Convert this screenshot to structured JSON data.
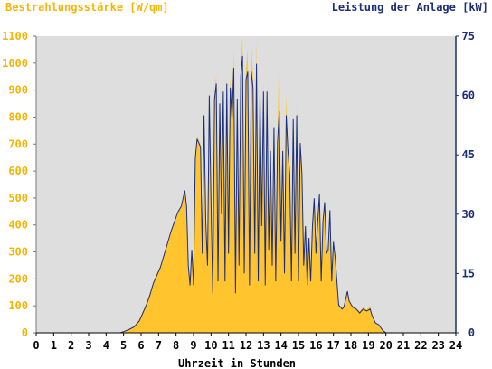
{
  "chart_data": {
    "type": "area",
    "left_axis_label": "Bestrahlungsstärke [W/qm]",
    "right_axis_label": "Leistung der Anlage [kW]",
    "xlabel": "Uhrzeit in Stunden",
    "xlim": [
      0,
      24
    ],
    "ylim_left": [
      0,
      1100
    ],
    "ylim_right": [
      0,
      75
    ],
    "x_ticks": [
      "0",
      "1",
      "2",
      "3",
      "4",
      "5",
      "6",
      "7",
      "8",
      "9",
      "10",
      "11",
      "12",
      "13",
      "14",
      "15",
      "16",
      "17",
      "18",
      "19",
      "20",
      "21",
      "22",
      "23",
      "24"
    ],
    "y_left_ticks": [
      "0",
      "100",
      "200",
      "300",
      "400",
      "500",
      "600",
      "700",
      "800",
      "900",
      "1000",
      "1100"
    ],
    "y_right_ticks": [
      "0",
      "15",
      "30",
      "45",
      "60",
      "75"
    ],
    "colors": {
      "irradiance": "#ffc42e",
      "power": "#1c2f78",
      "background": "#dedede"
    },
    "series": [
      {
        "name": "Bestrahlungsstärke [W/qm]",
        "axis": "left",
        "points": [
          [
            0,
            0
          ],
          [
            4.8,
            0
          ],
          [
            5.0,
            5
          ],
          [
            5.3,
            12
          ],
          [
            5.6,
            25
          ],
          [
            5.9,
            50
          ],
          [
            6.1,
            80
          ],
          [
            6.3,
            110
          ],
          [
            6.5,
            145
          ],
          [
            6.7,
            190
          ],
          [
            6.9,
            220
          ],
          [
            7.1,
            250
          ],
          [
            7.3,
            290
          ],
          [
            7.5,
            330
          ],
          [
            7.7,
            370
          ],
          [
            7.9,
            410
          ],
          [
            8.1,
            440
          ],
          [
            8.3,
            470
          ],
          [
            8.5,
            520
          ],
          [
            8.6,
            470
          ],
          [
            8.7,
            250
          ],
          [
            8.8,
            180
          ],
          [
            8.9,
            310
          ],
          [
            9.0,
            180
          ],
          [
            9.1,
            650
          ],
          [
            9.2,
            730
          ],
          [
            9.4,
            700
          ],
          [
            9.5,
            300
          ],
          [
            9.6,
            820
          ],
          [
            9.7,
            420
          ],
          [
            9.8,
            260
          ],
          [
            9.9,
            900
          ],
          [
            10.0,
            500
          ],
          [
            10.1,
            150
          ],
          [
            10.2,
            880
          ],
          [
            10.3,
            960
          ],
          [
            10.4,
            200
          ],
          [
            10.5,
            880
          ],
          [
            10.6,
            450
          ],
          [
            10.7,
            920
          ],
          [
            10.8,
            200
          ],
          [
            10.9,
            960
          ],
          [
            11.0,
            300
          ],
          [
            11.1,
            950
          ],
          [
            11.2,
            820
          ],
          [
            11.3,
            1050
          ],
          [
            11.4,
            150
          ],
          [
            11.5,
            900
          ],
          [
            11.6,
            260
          ],
          [
            11.7,
            1000
          ],
          [
            11.8,
            1100
          ],
          [
            11.9,
            220
          ],
          [
            12.0,
            980
          ],
          [
            12.1,
            1050
          ],
          [
            12.2,
            180
          ],
          [
            12.3,
            1070
          ],
          [
            12.4,
            950
          ],
          [
            12.5,
            300
          ],
          [
            12.6,
            1090
          ],
          [
            12.7,
            200
          ],
          [
            12.8,
            920
          ],
          [
            12.9,
            400
          ],
          [
            13.0,
            940
          ],
          [
            13.1,
            180
          ],
          [
            13.2,
            950
          ],
          [
            13.3,
            320
          ],
          [
            13.4,
            700
          ],
          [
            13.5,
            250
          ],
          [
            13.6,
            780
          ],
          [
            13.7,
            200
          ],
          [
            13.8,
            720
          ],
          [
            13.9,
            1100
          ],
          [
            14.0,
            350
          ],
          [
            14.1,
            700
          ],
          [
            14.2,
            220
          ],
          [
            14.3,
            880
          ],
          [
            14.4,
            700
          ],
          [
            14.5,
            600
          ],
          [
            14.6,
            200
          ],
          [
            14.7,
            820
          ],
          [
            14.8,
            300
          ],
          [
            14.9,
            860
          ],
          [
            15.0,
            200
          ],
          [
            15.1,
            720
          ],
          [
            15.2,
            600
          ],
          [
            15.3,
            250
          ],
          [
            15.4,
            400
          ],
          [
            15.5,
            180
          ],
          [
            15.6,
            350
          ],
          [
            15.7,
            200
          ],
          [
            15.8,
            400
          ],
          [
            15.9,
            500
          ],
          [
            16.0,
            300
          ],
          [
            16.1,
            420
          ],
          [
            16.2,
            520
          ],
          [
            16.3,
            200
          ],
          [
            16.4,
            420
          ],
          [
            16.5,
            500
          ],
          [
            16.6,
            300
          ],
          [
            16.7,
            320
          ],
          [
            16.8,
            460
          ],
          [
            16.9,
            200
          ],
          [
            17.0,
            350
          ],
          [
            17.1,
            280
          ],
          [
            17.2,
            200
          ],
          [
            17.3,
            110
          ],
          [
            17.5,
            90
          ],
          [
            17.6,
            100
          ],
          [
            17.8,
            160
          ],
          [
            17.9,
            120
          ],
          [
            18.1,
            100
          ],
          [
            18.3,
            90
          ],
          [
            18.5,
            80
          ],
          [
            18.7,
            95
          ],
          [
            18.9,
            85
          ],
          [
            19.1,
            100
          ],
          [
            19.2,
            70
          ],
          [
            19.4,
            40
          ],
          [
            19.6,
            30
          ],
          [
            19.8,
            10
          ],
          [
            20.0,
            0
          ],
          [
            24,
            0
          ]
        ]
      },
      {
        "name": "Leistung der Anlage [kW]",
        "axis": "right",
        "points": [
          [
            0,
            0
          ],
          [
            4.8,
            0
          ],
          [
            5.0,
            0.3
          ],
          [
            5.3,
            0.8
          ],
          [
            5.6,
            1.5
          ],
          [
            5.9,
            3
          ],
          [
            6.1,
            5
          ],
          [
            6.3,
            7
          ],
          [
            6.5,
            9.5
          ],
          [
            6.7,
            12.5
          ],
          [
            6.9,
            14.5
          ],
          [
            7.1,
            16.5
          ],
          [
            7.3,
            19.5
          ],
          [
            7.5,
            22.5
          ],
          [
            7.7,
            25.5
          ],
          [
            7.9,
            28
          ],
          [
            8.1,
            30.5
          ],
          [
            8.3,
            32
          ],
          [
            8.5,
            36
          ],
          [
            8.6,
            32
          ],
          [
            8.7,
            17
          ],
          [
            8.8,
            12
          ],
          [
            8.9,
            21
          ],
          [
            9.0,
            12
          ],
          [
            9.1,
            44
          ],
          [
            9.2,
            49
          ],
          [
            9.4,
            47
          ],
          [
            9.5,
            20
          ],
          [
            9.6,
            55
          ],
          [
            9.7,
            28
          ],
          [
            9.8,
            17
          ],
          [
            9.9,
            60
          ],
          [
            10.0,
            33
          ],
          [
            10.1,
            10
          ],
          [
            10.2,
            59
          ],
          [
            10.3,
            63
          ],
          [
            10.4,
            13
          ],
          [
            10.5,
            58
          ],
          [
            10.6,
            30
          ],
          [
            10.7,
            61
          ],
          [
            10.8,
            13
          ],
          [
            10.9,
            63
          ],
          [
            11.0,
            20
          ],
          [
            11.1,
            62
          ],
          [
            11.2,
            54
          ],
          [
            11.3,
            67
          ],
          [
            11.4,
            10
          ],
          [
            11.5,
            59
          ],
          [
            11.6,
            17
          ],
          [
            11.7,
            65
          ],
          [
            11.8,
            70
          ],
          [
            11.9,
            15
          ],
          [
            12.0,
            64
          ],
          [
            12.1,
            66
          ],
          [
            12.2,
            12
          ],
          [
            12.3,
            66
          ],
          [
            12.4,
            62
          ],
          [
            12.5,
            20
          ],
          [
            12.6,
            68
          ],
          [
            12.7,
            13
          ],
          [
            12.8,
            60
          ],
          [
            12.9,
            27
          ],
          [
            13.0,
            61
          ],
          [
            13.1,
            12
          ],
          [
            13.2,
            61
          ],
          [
            13.3,
            21
          ],
          [
            13.4,
            46
          ],
          [
            13.5,
            17
          ],
          [
            13.6,
            52
          ],
          [
            13.7,
            13
          ],
          [
            13.8,
            48
          ],
          [
            13.9,
            56
          ],
          [
            14.0,
            23
          ],
          [
            14.1,
            46
          ],
          [
            14.2,
            15
          ],
          [
            14.3,
            55
          ],
          [
            14.4,
            46
          ],
          [
            14.5,
            40
          ],
          [
            14.6,
            13
          ],
          [
            14.7,
            54
          ],
          [
            14.8,
            20
          ],
          [
            14.9,
            55
          ],
          [
            15.0,
            13
          ],
          [
            15.1,
            48
          ],
          [
            15.2,
            40
          ],
          [
            15.3,
            17
          ],
          [
            15.4,
            27
          ],
          [
            15.5,
            12
          ],
          [
            15.6,
            24
          ],
          [
            15.7,
            13
          ],
          [
            15.8,
            27
          ],
          [
            15.9,
            34
          ],
          [
            16.0,
            20
          ],
          [
            16.1,
            28
          ],
          [
            16.2,
            35
          ],
          [
            16.3,
            13
          ],
          [
            16.4,
            28
          ],
          [
            16.5,
            33
          ],
          [
            16.6,
            20
          ],
          [
            16.7,
            21
          ],
          [
            16.8,
            31
          ],
          [
            16.9,
            13
          ],
          [
            17.0,
            23
          ],
          [
            17.1,
            19
          ],
          [
            17.2,
            13
          ],
          [
            17.3,
            7
          ],
          [
            17.5,
            6
          ],
          [
            17.6,
            6.5
          ],
          [
            17.8,
            10.5
          ],
          [
            17.9,
            8
          ],
          [
            18.1,
            6.5
          ],
          [
            18.3,
            6
          ],
          [
            18.5,
            5
          ],
          [
            18.7,
            6
          ],
          [
            18.9,
            5.5
          ],
          [
            19.1,
            6
          ],
          [
            19.2,
            4.5
          ],
          [
            19.4,
            2.5
          ],
          [
            19.6,
            2
          ],
          [
            19.8,
            0.7
          ],
          [
            20.0,
            0
          ],
          [
            24,
            0
          ]
        ]
      }
    ]
  }
}
